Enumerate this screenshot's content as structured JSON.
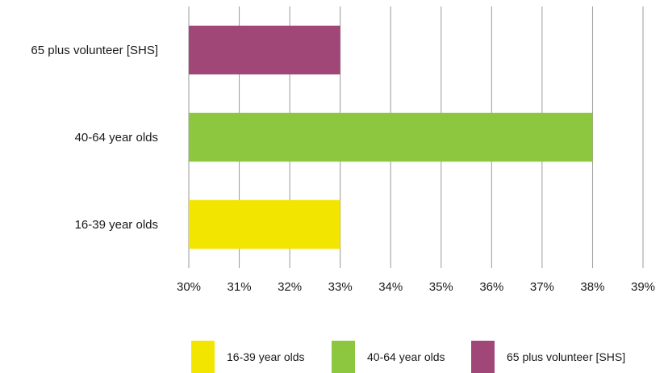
{
  "chart_data": {
    "type": "bar",
    "orientation": "horizontal",
    "categories": [
      "16-39 year olds",
      "40-64 year olds",
      "65 plus volunteer [SHS]"
    ],
    "series": [
      {
        "name": "16-39 year olds",
        "color": "#f2e600",
        "values": [
          33,
          null,
          null
        ]
      },
      {
        "name": "40-64 year olds",
        "color": "#8dc63f",
        "values": [
          null,
          38,
          null
        ]
      },
      {
        "name": "65 plus volunteer [SHS]",
        "color": "#a04778",
        "values": [
          null,
          null,
          33
        ]
      }
    ],
    "x_ticks": [
      "30%",
      "31%",
      "32%",
      "33%",
      "34%",
      "35%",
      "36%",
      "37%",
      "38%",
      "39%"
    ],
    "xlim": [
      30,
      39
    ],
    "x_unit": "%",
    "grid": "vertical",
    "legend_position": "bottom",
    "title": "",
    "xlabel": "",
    "ylabel": ""
  }
}
